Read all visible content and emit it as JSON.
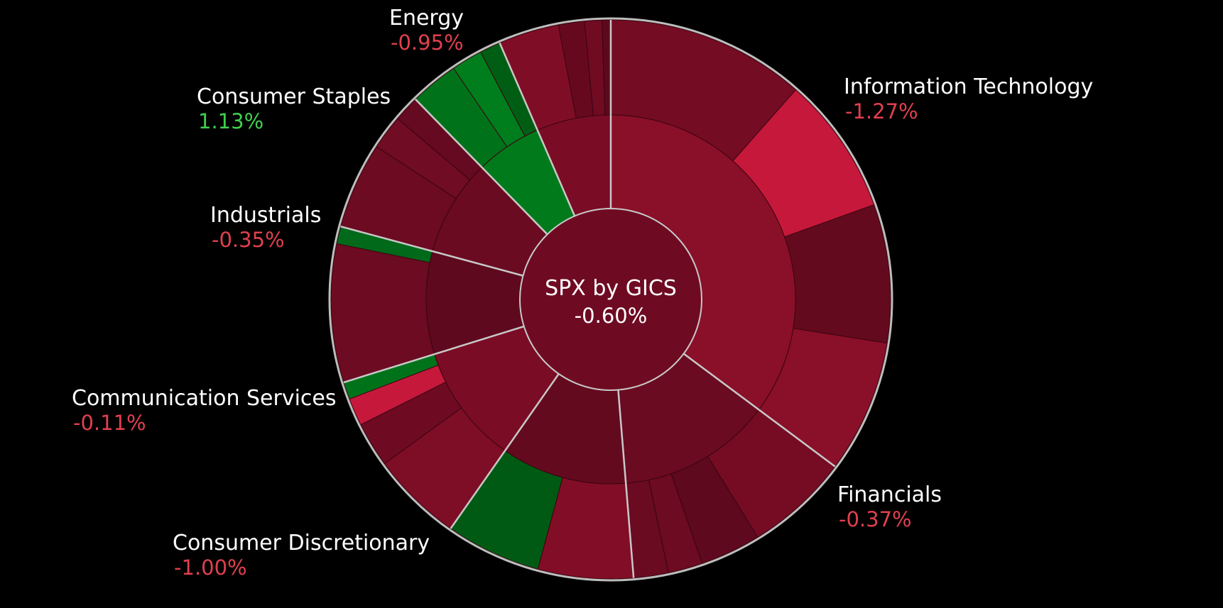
{
  "chart_data": {
    "type": "sunburst",
    "center": {
      "label": "SPX by GICS",
      "change": "-0.60%"
    },
    "colors": {
      "background": "#000000",
      "separator": "#c8c8c8",
      "positive_label": "#3fd14f",
      "negative_label": "#e0404e",
      "label_text": "#ffffff",
      "center_fill": "#6e0b22",
      "outline": "#bdbdbd"
    },
    "sectors": [
      {
        "name": "Information Technology",
        "change": "-1.27%",
        "weight": 35.2,
        "color": "#8a0f28",
        "children": [
          {
            "weight": 11.5,
            "color": "#740c24"
          },
          {
            "weight": 8.0,
            "color": "#c6183a"
          },
          {
            "weight": 8.0,
            "color": "#640a1f"
          },
          {
            "weight": 7.7,
            "color": ""
          }
        ]
      },
      {
        "name": "Financials",
        "change": "-0.37%",
        "weight": 13.5,
        "color": "#6a0b21",
        "children": [
          {
            "weight": 6.0,
            "color": "#750c24"
          },
          {
            "weight": 3.5,
            "color": "#5e091e"
          },
          {
            "weight": 2.0,
            "color": "#6c0b21"
          },
          {
            "weight": 2.0,
            "color": ""
          }
        ]
      },
      {
        "name": "Consumer Discretionary",
        "change": "-1.00%",
        "weight": 11.0,
        "color": "#640a1f",
        "children": [
          {
            "weight": 5.5,
            "color": "#820d26"
          },
          {
            "weight": 5.5,
            "color": "#005a14"
          }
        ]
      },
      {
        "name": "Consumer Discretionary",
        "change": "-1.00%",
        "weight": 10.5,
        "color": "#7a0c25",
        "children": [
          {
            "weight": 5.3,
            "color": "#7e0d26"
          },
          {
            "weight": 2.6,
            "color": "#6e0b22"
          },
          {
            "weight": 1.6,
            "color": "#c6183a"
          },
          {
            "weight": 1.0,
            "color": "#00731a"
          }
        ]
      },
      {
        "name": "Communication Services",
        "change": "-0.11%",
        "weight": 9.0,
        "color": "#5e091e",
        "children": [
          {
            "weight": 8.0,
            "color": "#6c0b21"
          },
          {
            "weight": 1.0,
            "color": "#00691a"
          }
        ]
      },
      {
        "name": "Industrials",
        "change": "-0.35%",
        "weight": 8.5,
        "color": "#6a0b21",
        "children": [
          {
            "weight": 5.0,
            "color": "#6c0b21"
          },
          {
            "weight": 2.0,
            "color": "#700c23"
          },
          {
            "weight": 1.5,
            "color": "#650a20"
          }
        ]
      },
      {
        "name": "Consumer Staples",
        "change": "1.13%",
        "weight": 5.8,
        "color": "#007a1a",
        "children": [
          {
            "weight": 2.8,
            "color": "#00731a"
          },
          {
            "weight": 1.8,
            "color": "#007d1d"
          },
          {
            "weight": 1.2,
            "color": "#005e14"
          }
        ]
      },
      {
        "name": "Energy",
        "change": "-0.95%",
        "weight": 6.5,
        "color": "#7a0c25",
        "children": [
          {
            "weight": 3.5,
            "color": "#800d26"
          },
          {
            "weight": 1.5,
            "color": "#66091f"
          },
          {
            "weight": 1.0,
            "color": "#700b22"
          },
          {
            "weight": 0.5,
            "color": "#5e081d"
          }
        ]
      }
    ],
    "labels": [
      {
        "sector": "Energy",
        "text": "Energy",
        "change": "-0.95%",
        "direction": "negative"
      },
      {
        "sector": "Information Technology",
        "text": "Information Technology",
        "change": "-1.27%",
        "direction": "negative"
      },
      {
        "sector": "Consumer Staples",
        "text": "Consumer Staples",
        "change": "1.13%",
        "direction": "positive"
      },
      {
        "sector": "Industrials",
        "text": "Industrials",
        "change": "-0.35%",
        "direction": "negative"
      },
      {
        "sector": "Communication Services",
        "text": "Communication Services",
        "change": "-0.11%",
        "direction": "negative"
      },
      {
        "sector": "Financials",
        "text": "Financials",
        "change": "-0.37%",
        "direction": "negative"
      },
      {
        "sector": "Consumer Discretionary",
        "text": "Consumer Discretionary",
        "change": "-1.00%",
        "direction": "negative"
      }
    ]
  }
}
